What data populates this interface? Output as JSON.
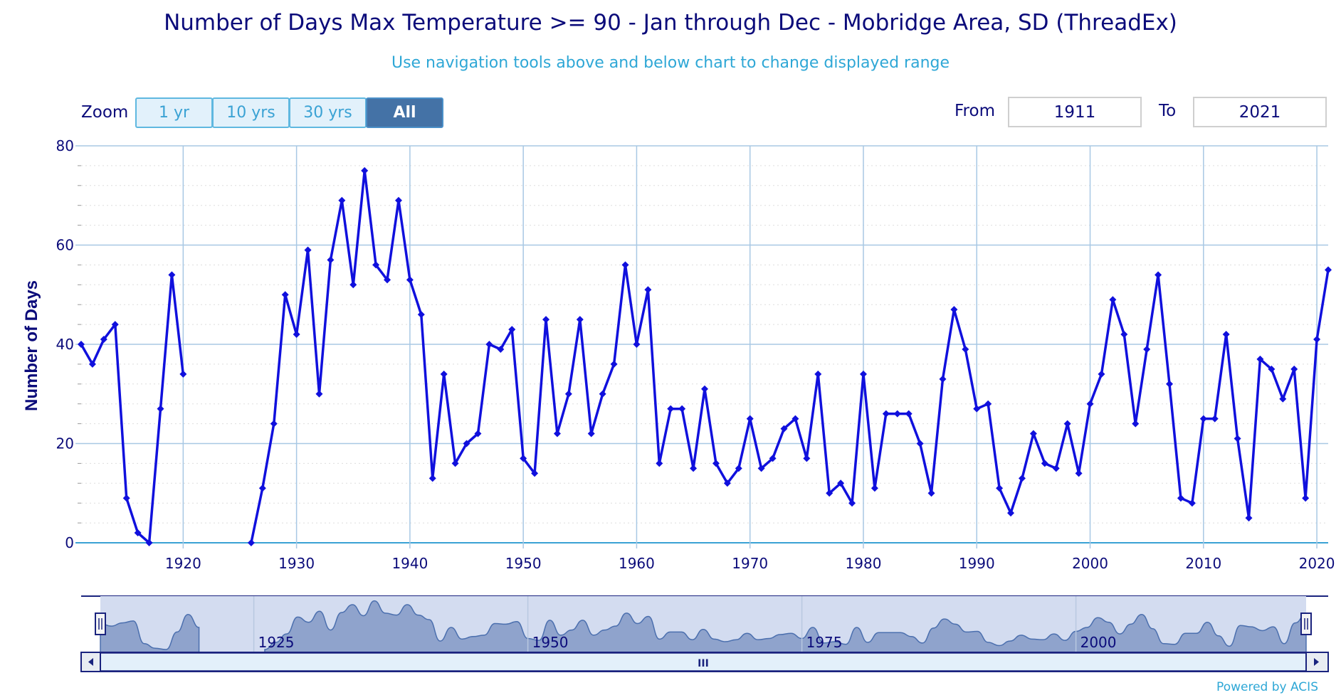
{
  "header": {
    "title": "Number of Days Max Temperature >= 90 - Jan through Dec - Mobridge Area, SD (ThreadEx)",
    "subtitle": "Use navigation tools above and below chart to change displayed range"
  },
  "zoom": {
    "label": "Zoom",
    "buttons": [
      {
        "label": "1 yr",
        "active": false
      },
      {
        "label": "10 yrs",
        "active": false
      },
      {
        "label": "30 yrs",
        "active": false
      },
      {
        "label": "All",
        "active": true
      }
    ]
  },
  "range": {
    "from_label": "From",
    "from_value": "1911",
    "to_label": "To",
    "to_value": "2021"
  },
  "footer": {
    "credit": "Powered by ACIS"
  },
  "colors": {
    "series": "#1010dd",
    "grid": "#a8c8e4",
    "axis_text": "#0b0b7a",
    "navigator_fill": "#8fa3cc",
    "navigator_mask": "#d3dcf0"
  },
  "chart_data": {
    "type": "line",
    "ylabel": "Number of Days",
    "ylim": [
      0,
      80
    ],
    "yticks": [
      0,
      20,
      40,
      60,
      80
    ],
    "xlim": [
      1911,
      2021
    ],
    "xticks": [
      1920,
      1930,
      1940,
      1950,
      1960,
      1970,
      1980,
      1990,
      2000,
      2010,
      2020
    ],
    "navigator_ticks": [
      1925,
      1950,
      1975,
      2000
    ],
    "navigator_scrollbar_grip": "III",
    "grid": true,
    "series": [
      {
        "points": [
          [
            1911,
            40
          ],
          [
            1912,
            36
          ],
          [
            1913,
            41
          ],
          [
            1914,
            44
          ],
          [
            1915,
            9
          ],
          [
            1916,
            2
          ],
          [
            1917,
            0
          ],
          [
            1918,
            27
          ],
          [
            1919,
            54
          ],
          [
            1920,
            34
          ],
          null,
          [
            1926,
            0
          ],
          [
            1927,
            11
          ],
          [
            1928,
            24
          ],
          [
            1929,
            50
          ],
          [
            1930,
            42
          ],
          [
            1931,
            59
          ],
          [
            1932,
            30
          ],
          [
            1933,
            57
          ],
          [
            1934,
            69
          ],
          [
            1935,
            52
          ],
          [
            1936,
            75
          ],
          [
            1937,
            56
          ],
          [
            1938,
            53
          ],
          [
            1939,
            69
          ],
          [
            1940,
            53
          ],
          [
            1941,
            46
          ],
          [
            1942,
            13
          ],
          [
            1943,
            34
          ],
          [
            1944,
            16
          ],
          [
            1945,
            20
          ],
          [
            1946,
            22
          ],
          [
            1947,
            40
          ],
          [
            1948,
            39
          ],
          [
            1949,
            43
          ],
          [
            1950,
            17
          ],
          [
            1951,
            14
          ],
          [
            1952,
            45
          ],
          [
            1953,
            22
          ],
          [
            1954,
            30
          ],
          [
            1955,
            45
          ],
          [
            1956,
            22
          ],
          [
            1957,
            30
          ],
          [
            1958,
            36
          ],
          [
            1959,
            56
          ],
          [
            1960,
            40
          ],
          [
            1961,
            51
          ],
          [
            1962,
            16
          ],
          [
            1963,
            27
          ],
          [
            1964,
            27
          ],
          [
            1965,
            15
          ],
          [
            1966,
            31
          ],
          [
            1967,
            16
          ],
          [
            1968,
            12
          ],
          [
            1969,
            15
          ],
          [
            1970,
            25
          ],
          [
            1971,
            15
          ],
          [
            1972,
            17
          ],
          [
            1973,
            23
          ],
          [
            1974,
            25
          ],
          [
            1975,
            17
          ],
          [
            1976,
            34
          ],
          [
            1977,
            10
          ],
          [
            1978,
            12
          ],
          [
            1979,
            8
          ],
          [
            1980,
            34
          ],
          [
            1981,
            11
          ],
          [
            1982,
            26
          ],
          [
            1983,
            26
          ],
          [
            1984,
            26
          ],
          [
            1985,
            20
          ],
          [
            1986,
            10
          ],
          [
            1987,
            33
          ],
          [
            1988,
            47
          ],
          [
            1989,
            39
          ],
          [
            1990,
            27
          ],
          [
            1991,
            28
          ],
          [
            1992,
            11
          ],
          [
            1993,
            6
          ],
          [
            1994,
            13
          ],
          [
            1995,
            22
          ],
          [
            1996,
            16
          ],
          [
            1997,
            15
          ],
          [
            1998,
            24
          ],
          [
            1999,
            14
          ],
          [
            2000,
            28
          ],
          [
            2001,
            34
          ],
          [
            2002,
            49
          ],
          [
            2003,
            42
          ],
          [
            2004,
            24
          ],
          [
            2005,
            39
          ],
          [
            2006,
            54
          ],
          [
            2007,
            32
          ],
          [
            2008,
            9
          ],
          [
            2009,
            8
          ],
          [
            2010,
            25
          ],
          [
            2011,
            25
          ],
          [
            2012,
            42
          ],
          [
            2013,
            21
          ],
          [
            2014,
            5
          ],
          [
            2015,
            37
          ],
          [
            2016,
            35
          ],
          [
            2017,
            29
          ],
          [
            2018,
            35
          ],
          [
            2019,
            9
          ],
          [
            2020,
            41
          ],
          [
            2021,
            55
          ]
        ]
      }
    ]
  }
}
